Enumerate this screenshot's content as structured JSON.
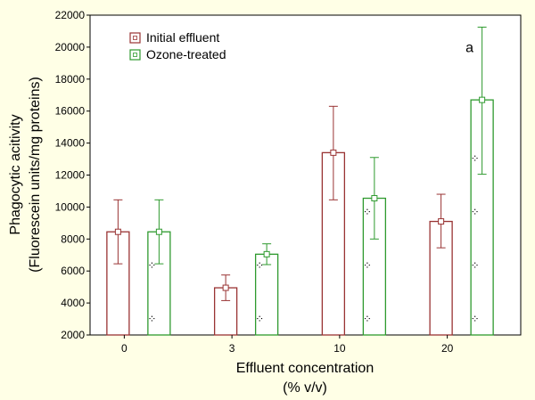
{
  "chart_data": {
    "type": "bar",
    "title": "",
    "xlabel_line1": "Effluent concentration",
    "xlabel_line2": "(% v/v)",
    "ylabel_line1": "Phagocytic acitivity",
    "ylabel_line2": "(Fluorescein units/mg proteins)",
    "ylim": [
      2000,
      22000
    ],
    "yticks": [
      2000,
      4000,
      6000,
      8000,
      10000,
      12000,
      14000,
      16000,
      18000,
      20000,
      22000
    ],
    "categories": [
      "0",
      "3",
      "10",
      "20"
    ],
    "series": [
      {
        "name": "Initial effluent",
        "color": "#993333",
        "values": [
          8450,
          4950,
          13400,
          9100
        ],
        "err_low": [
          6450,
          4150,
          10450,
          7450
        ],
        "err_high": [
          10450,
          5750,
          16300,
          10800
        ]
      },
      {
        "name": "Ozone-treated",
        "color": "#2e9a2e",
        "values": [
          8450,
          7050,
          10550,
          16700
        ],
        "err_low": [
          6450,
          6400,
          8000,
          12050
        ],
        "err_high": [
          10450,
          7700,
          13100,
          21250
        ]
      }
    ],
    "annotations": [
      {
        "text": "a",
        "category": "20",
        "series": "Ozone-treated"
      }
    ],
    "legend_position": "top-left",
    "grid": false
  }
}
